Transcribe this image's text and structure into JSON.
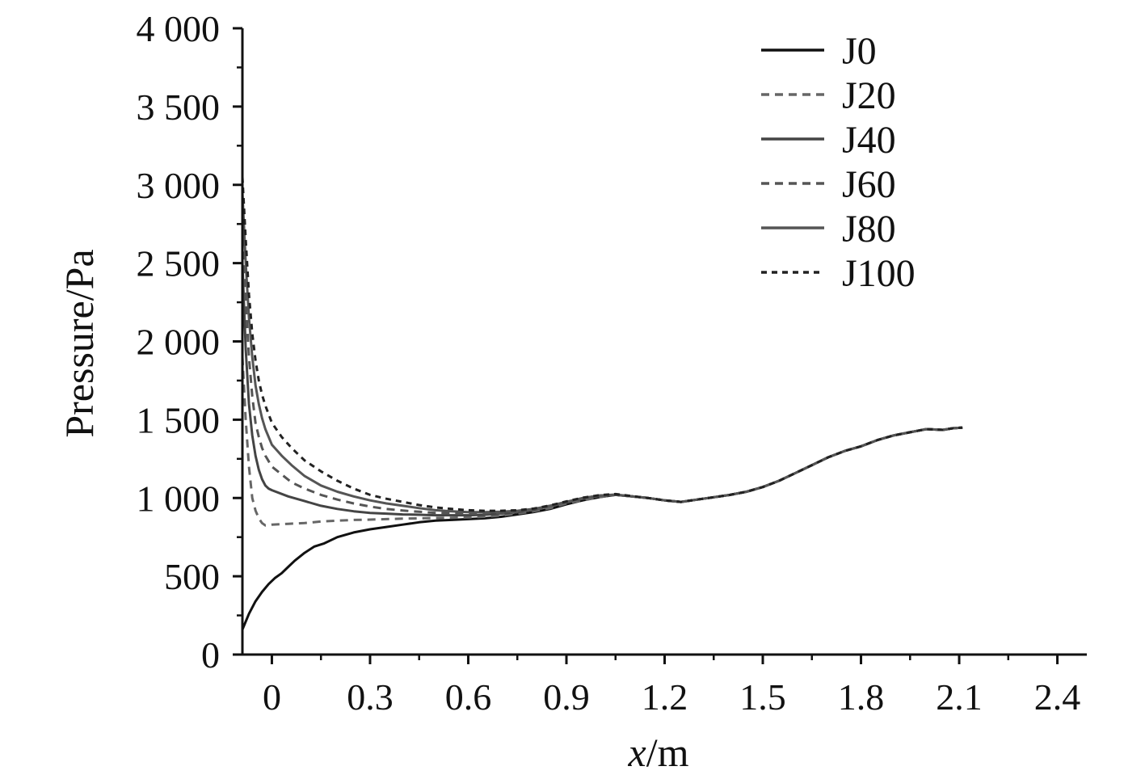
{
  "chart_data": {
    "type": "line",
    "title": "",
    "xlabel_italic": "x",
    "xlabel_rest": "/m",
    "ylabel": "Pressure/Pa",
    "xlim": [
      -0.09,
      2.49
    ],
    "ylim": [
      0,
      4000
    ],
    "x_ticks": [
      0,
      0.3,
      0.6,
      0.9,
      1.2,
      1.5,
      1.8,
      2.1,
      2.4
    ],
    "x_tick_labels": [
      "0",
      "0.3",
      "0.6",
      "0.9",
      "1.2",
      "1.5",
      "1.8",
      "2.1",
      "2.4"
    ],
    "y_ticks": [
      0,
      500,
      1000,
      1500,
      2000,
      2500,
      3000,
      3500,
      4000
    ],
    "y_tick_labels": [
      "0",
      "500",
      "1 000",
      "1 500",
      "2 000",
      "2 500",
      "3 000",
      "3 500",
      "4 000"
    ],
    "grid": false,
    "legend_position": "top-right",
    "series": [
      {
        "name": "J0",
        "color": "#111111",
        "dash": "solid",
        "x": [
          -0.09,
          -0.07,
          -0.05,
          -0.03,
          -0.01,
          0.01,
          0.03,
          0.05,
          0.07,
          0.1,
          0.13,
          0.16,
          0.2,
          0.25,
          0.3,
          0.35,
          0.4,
          0.45,
          0.5,
          0.55,
          0.6,
          0.65,
          0.7,
          0.75,
          0.8,
          0.85,
          0.9,
          0.95,
          1.0,
          1.05,
          1.1,
          1.15,
          1.2,
          1.25,
          1.3,
          1.35,
          1.4,
          1.45,
          1.5,
          1.55,
          1.6,
          1.65,
          1.7,
          1.75,
          1.8,
          1.85,
          1.9,
          1.95,
          2.0,
          2.05,
          2.08,
          2.11
        ],
        "y": [
          160,
          260,
          340,
          400,
          450,
          490,
          520,
          560,
          600,
          650,
          690,
          710,
          750,
          780,
          800,
          815,
          830,
          845,
          855,
          860,
          865,
          870,
          880,
          895,
          910,
          930,
          960,
          985,
          1005,
          1020,
          1010,
          1000,
          985,
          975,
          990,
          1005,
          1020,
          1040,
          1070,
          1110,
          1160,
          1210,
          1260,
          1300,
          1330,
          1370,
          1400,
          1420,
          1440,
          1435,
          1445,
          1450
        ]
      },
      {
        "name": "J20",
        "color": "#666666",
        "dash": "10 7",
        "x": [
          -0.09,
          -0.08,
          -0.07,
          -0.06,
          -0.05,
          -0.04,
          -0.03,
          -0.02,
          0.0,
          0.05,
          0.1,
          0.15,
          0.2,
          0.25,
          0.3,
          0.35,
          0.4,
          0.45,
          0.5,
          0.55,
          0.6,
          0.65,
          0.7,
          0.75,
          0.8,
          0.85,
          0.9,
          0.95,
          1.0,
          1.05,
          1.1,
          1.15,
          1.2,
          1.25,
          1.3,
          1.35,
          1.4,
          1.45,
          1.5,
          1.55,
          1.6,
          1.65,
          1.7,
          1.75,
          1.8,
          1.85,
          1.9,
          1.95,
          2.0,
          2.05,
          2.08,
          2.11
        ],
        "y": [
          1900,
          1500,
          1200,
          1000,
          920,
          870,
          840,
          825,
          830,
          835,
          840,
          850,
          855,
          860,
          862,
          865,
          868,
          870,
          872,
          874,
          876,
          880,
          888,
          900,
          915,
          935,
          965,
          985,
          1005,
          1020,
          1010,
          1000,
          985,
          975,
          990,
          1005,
          1020,
          1040,
          1070,
          1110,
          1160,
          1210,
          1260,
          1300,
          1330,
          1370,
          1400,
          1420,
          1440,
          1435,
          1445,
          1450
        ]
      },
      {
        "name": "J40",
        "color": "#444444",
        "dash": "solid",
        "x": [
          -0.09,
          -0.08,
          -0.07,
          -0.06,
          -0.05,
          -0.04,
          -0.03,
          -0.02,
          -0.01,
          0.0,
          0.05,
          0.1,
          0.15,
          0.2,
          0.25,
          0.3,
          0.35,
          0.4,
          0.45,
          0.5,
          0.55,
          0.6,
          0.65,
          0.7,
          0.75,
          0.8,
          0.85,
          0.9,
          0.95,
          1.0,
          1.05,
          1.1,
          1.15,
          1.2,
          1.25,
          1.3,
          1.35,
          1.4,
          1.45,
          1.5,
          1.55,
          1.6,
          1.65,
          1.7,
          1.75,
          1.8,
          1.85,
          1.9,
          1.95,
          2.0,
          2.05,
          2.08,
          2.11
        ],
        "y": [
          2500,
          1950,
          1600,
          1400,
          1270,
          1180,
          1120,
          1080,
          1060,
          1050,
          1010,
          980,
          950,
          930,
          915,
          905,
          900,
          895,
          893,
          890,
          890,
          890,
          893,
          900,
          910,
          925,
          950,
          975,
          1000,
          1015,
          1020,
          1010,
          1000,
          985,
          975,
          990,
          1005,
          1020,
          1040,
          1070,
          1110,
          1160,
          1210,
          1260,
          1300,
          1330,
          1370,
          1400,
          1420,
          1440,
          1435,
          1445,
          1450
        ]
      },
      {
        "name": "J60",
        "color": "#555555",
        "dash": "10 7",
        "x": [
          -0.09,
          -0.08,
          -0.07,
          -0.06,
          -0.05,
          -0.04,
          -0.03,
          -0.02,
          0.0,
          0.03,
          0.06,
          0.1,
          0.15,
          0.2,
          0.25,
          0.3,
          0.35,
          0.4,
          0.45,
          0.5,
          0.55,
          0.6,
          0.65,
          0.7,
          0.75,
          0.8,
          0.85,
          0.9,
          0.95,
          1.0,
          1.05,
          1.1,
          1.15,
          1.2,
          1.25,
          1.3,
          1.35,
          1.4,
          1.45,
          1.5,
          1.55,
          1.6,
          1.65,
          1.7,
          1.75,
          1.8,
          1.85,
          1.9,
          1.95,
          2.0,
          2.05,
          2.08,
          2.11
        ],
        "y": [
          2750,
          2250,
          1900,
          1650,
          1480,
          1390,
          1320,
          1270,
          1200,
          1150,
          1100,
          1060,
          1020,
          990,
          965,
          945,
          930,
          920,
          912,
          905,
          902,
          900,
          902,
          905,
          912,
          925,
          948,
          972,
          995,
          1012,
          1020,
          1010,
          1000,
          985,
          975,
          990,
          1005,
          1020,
          1040,
          1070,
          1110,
          1160,
          1210,
          1260,
          1300,
          1330,
          1370,
          1400,
          1420,
          1440,
          1435,
          1445,
          1450
        ]
      },
      {
        "name": "J80",
        "color": "#555555",
        "dash": "solid",
        "x": [
          -0.09,
          -0.08,
          -0.07,
          -0.06,
          -0.05,
          -0.04,
          -0.03,
          -0.02,
          0.0,
          0.03,
          0.06,
          0.1,
          0.15,
          0.2,
          0.25,
          0.3,
          0.35,
          0.4,
          0.45,
          0.5,
          0.55,
          0.6,
          0.65,
          0.7,
          0.75,
          0.8,
          0.85,
          0.9,
          0.95,
          1.0,
          1.05,
          1.1,
          1.15,
          1.2,
          1.25,
          1.3,
          1.35,
          1.4,
          1.45,
          1.5,
          1.55,
          1.6,
          1.65,
          1.7,
          1.75,
          1.8,
          1.85,
          1.9,
          1.95,
          2.0,
          2.05,
          2.08,
          2.11
        ],
        "y": [
          2950,
          2500,
          2150,
          1900,
          1720,
          1600,
          1510,
          1440,
          1340,
          1270,
          1210,
          1140,
          1080,
          1040,
          1010,
          985,
          965,
          950,
          935,
          922,
          915,
          910,
          910,
          912,
          918,
          930,
          950,
          975,
          1000,
          1015,
          1022,
          1010,
          1000,
          985,
          975,
          990,
          1005,
          1020,
          1040,
          1070,
          1110,
          1160,
          1210,
          1260,
          1300,
          1330,
          1370,
          1400,
          1420,
          1440,
          1435,
          1445,
          1450
        ]
      },
      {
        "name": "J100",
        "color": "#222222",
        "dash": "7 6",
        "x": [
          -0.09,
          -0.08,
          -0.07,
          -0.06,
          -0.05,
          -0.04,
          -0.03,
          -0.02,
          0.0,
          0.03,
          0.06,
          0.1,
          0.15,
          0.2,
          0.25,
          0.3,
          0.35,
          0.4,
          0.45,
          0.5,
          0.55,
          0.6,
          0.65,
          0.7,
          0.75,
          0.8,
          0.85,
          0.9,
          0.95,
          1.0,
          1.05,
          1.1,
          1.15,
          1.2,
          1.25,
          1.3,
          1.35,
          1.4,
          1.45,
          1.5,
          1.55,
          1.6,
          1.65,
          1.7,
          1.75,
          1.8,
          1.85,
          1.9,
          1.95,
          2.0,
          2.05,
          2.08,
          2.11
        ],
        "y": [
          3050,
          2650,
          2300,
          2050,
          1880,
          1750,
          1660,
          1590,
          1480,
          1390,
          1320,
          1240,
          1170,
          1110,
          1060,
          1020,
          995,
          975,
          955,
          940,
          930,
          922,
          918,
          918,
          922,
          932,
          952,
          978,
          1002,
          1018,
          1025,
          1012,
          1000,
          985,
          975,
          990,
          1005,
          1020,
          1040,
          1070,
          1110,
          1160,
          1210,
          1260,
          1300,
          1330,
          1370,
          1400,
          1420,
          1440,
          1435,
          1445,
          1450
        ]
      }
    ]
  }
}
